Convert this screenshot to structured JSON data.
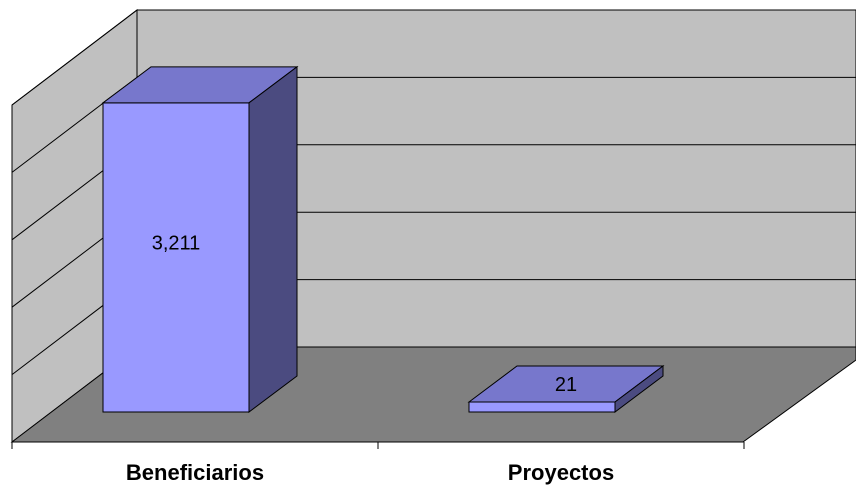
{
  "chart_data": {
    "type": "bar",
    "style": "3d-column",
    "categories": [
      "Beneficiarios",
      "Proyectos"
    ],
    "values": [
      3211,
      21
    ],
    "data_labels": [
      "3,211",
      "21"
    ],
    "title": "",
    "xlabel": "",
    "ylabel": "",
    "ylim": [
      0,
      3500
    ],
    "grid": true,
    "legend": "none",
    "colors": {
      "bar_front": "#9999ff",
      "bar_top": "#7777cc",
      "bar_side": "#4b4b80",
      "wall": "#c0c0c0",
      "floor": "#808080",
      "grid": "#000000"
    }
  }
}
